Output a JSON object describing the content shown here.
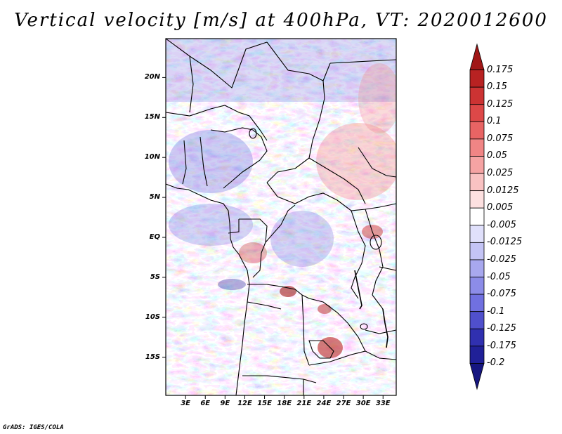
{
  "title": "Vertical velocity [m/s] at 400hPa, VT: 2020012600",
  "credit": "GrADS: IGES/COLA",
  "map": {
    "lat_labels": [
      "20N",
      "15N",
      "10N",
      "5N",
      "EQ",
      "5S",
      "10S",
      "15S"
    ],
    "lon_labels": [
      "3E",
      "6E",
      "9E",
      "12E",
      "15E",
      "18E",
      "21E",
      "24E",
      "27E",
      "30E",
      "33E"
    ],
    "lat_values": [
      20,
      15,
      10,
      5,
      0,
      -5,
      -10,
      -15
    ],
    "lon_values": [
      3,
      6,
      9,
      12,
      15,
      18,
      21,
      24,
      27,
      30,
      33
    ],
    "lat_range": [
      -20,
      25
    ],
    "lon_range": [
      0,
      35
    ]
  },
  "colorbar": {
    "labels": [
      "0.175",
      "0.15",
      "0.125",
      "0.1",
      "0.075",
      "0.05",
      "0.025",
      "0.0125",
      "0.005",
      "-0.005",
      "-0.0125",
      "-0.025",
      "-0.05",
      "-0.075",
      "-0.1",
      "-0.125",
      "-0.175",
      "-0.2"
    ],
    "colors": [
      "#a01616",
      "#b82222",
      "#cc3333",
      "#dd4848",
      "#e86464",
      "#f08585",
      "#f5a3a3",
      "#f9c2c2",
      "#fde0e0",
      "#ffffff",
      "#e0e0fb",
      "#c4c4f5",
      "#a8a8ee",
      "#8c8ce8",
      "#7070e0",
      "#5050cc",
      "#3030b0",
      "#202098",
      "#161680"
    ]
  }
}
